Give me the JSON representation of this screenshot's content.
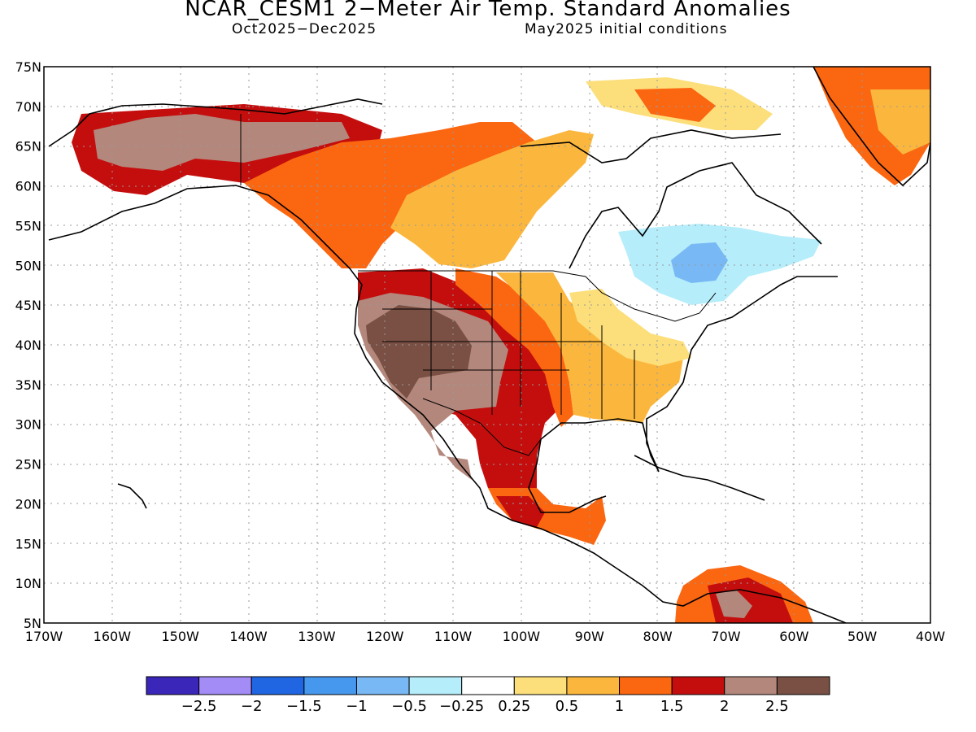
{
  "title": "NCAR_CESM1 2−Meter Air Temp. Standard Anomalies",
  "subtitle_left": "Oct2025−Dec2025",
  "subtitle_right": "May2025 initial conditions",
  "map": {
    "projection": "lat-lon",
    "lon_range": [
      -170,
      -40
    ],
    "lat_range": [
      5,
      75
    ],
    "grid": "dotted",
    "lat_labels": [
      "5N",
      "10N",
      "15N",
      "20N",
      "25N",
      "30N",
      "35N",
      "40N",
      "45N",
      "50N",
      "55N",
      "60N",
      "65N",
      "70N",
      "75N"
    ],
    "lon_labels": [
      "170W",
      "160W",
      "150W",
      "140W",
      "130W",
      "120W",
      "110W",
      "100W",
      "90W",
      "80W",
      "70W",
      "60W",
      "50W",
      "40W"
    ],
    "anomaly_regions": [
      {
        "region": "Four Corners / Great Basin",
        "category": "above 2.5",
        "color": "#7a5044"
      },
      {
        "region": "Desert Southwest / Great Basin rim",
        "category": "2 to 2.5",
        "color": "#b4877c"
      },
      {
        "region": "Alaska interior",
        "category": "2 to 2.5",
        "color": "#b4877c"
      },
      {
        "region": "Texas / N Mexico / Rockies",
        "category": "1.5 to 2",
        "color": "#c40e0e"
      },
      {
        "region": "Pacific Northwest",
        "category": "1.5 to 2",
        "color": "#c40e0e"
      },
      {
        "region": "Western Canada",
        "category": "1 to 1.5",
        "color": "#fb6611"
      },
      {
        "region": "Southeast US",
        "category": "0.5 to 1",
        "color": "#fbb73d"
      },
      {
        "region": "Ohio Valley",
        "category": "0.25 to 0.5",
        "color": "#fcdf7b"
      },
      {
        "region": "Quebec",
        "category": "-0.5 to -0.25",
        "color": "#b5edfa"
      },
      {
        "region": "Central Quebec",
        "category": "-1 to -0.5",
        "color": "#78b8f5"
      },
      {
        "region": "Greenland",
        "category": "1 to 1.5",
        "color": "#fb6611"
      },
      {
        "region": "Northern South America",
        "category": "1.5 to 2",
        "color": "#c40e0e"
      }
    ]
  },
  "colorbar": {
    "colors": [
      "#3a26b8",
      "#a38cf6",
      "#2066e3",
      "#4598ee",
      "#78b8f5",
      "#b5edfa",
      "#ffffff",
      "#fcdf7b",
      "#fbb73d",
      "#fb6611",
      "#c40e0e",
      "#b4877c",
      "#7a5044"
    ],
    "labels": [
      "−2.5",
      "−2",
      "−1.5",
      "−1",
      "−0.5",
      "−0.25",
      "0.25",
      "0.5",
      "1",
      "1.5",
      "2",
      "2.5"
    ]
  }
}
